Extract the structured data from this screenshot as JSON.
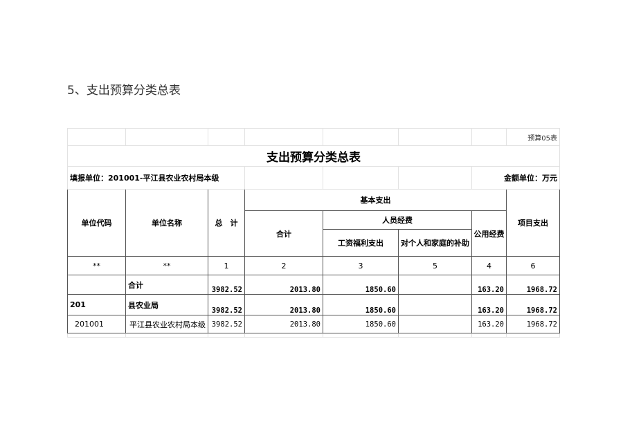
{
  "heading": "5、支出预算分类总表",
  "sheet": {
    "form_no": "预算05表",
    "title": "支出预算分类总表",
    "filler": "填报单位：201001-平江县农业农村局本级",
    "unit": "金额单位：万元",
    "headers": {
      "code": "单位代码",
      "name": "单位名称",
      "total": "总　计",
      "basic": "基本支出",
      "basic_total": "合计",
      "personnel": "人员经费",
      "salary": "工资福利支出",
      "subsidy": "对个人和家庭的补助",
      "public": "公用经费",
      "project": "项目支出"
    },
    "index_row": [
      "**",
      "**",
      "1",
      "2",
      "3",
      "5",
      "4",
      "6"
    ],
    "rows": [
      {
        "code": "",
        "name": "合计",
        "total": "3982.52",
        "basic": "2013.80",
        "salary": "1850.60",
        "subsidy": "",
        "public": "163.20",
        "project": "1968.72"
      },
      {
        "code": "201",
        "name": "县农业局",
        "total": "3982.52",
        "basic": "2013.80",
        "salary": "1850.60",
        "subsidy": "",
        "public": "163.20",
        "project": "1968.72"
      },
      {
        "code": "201001",
        "name": "平江县农业农村局本级",
        "total": "3982.52",
        "basic": "2013.80",
        "salary": "1850.60",
        "subsidy": "",
        "public": "163.20",
        "project": "1968.72"
      }
    ]
  }
}
